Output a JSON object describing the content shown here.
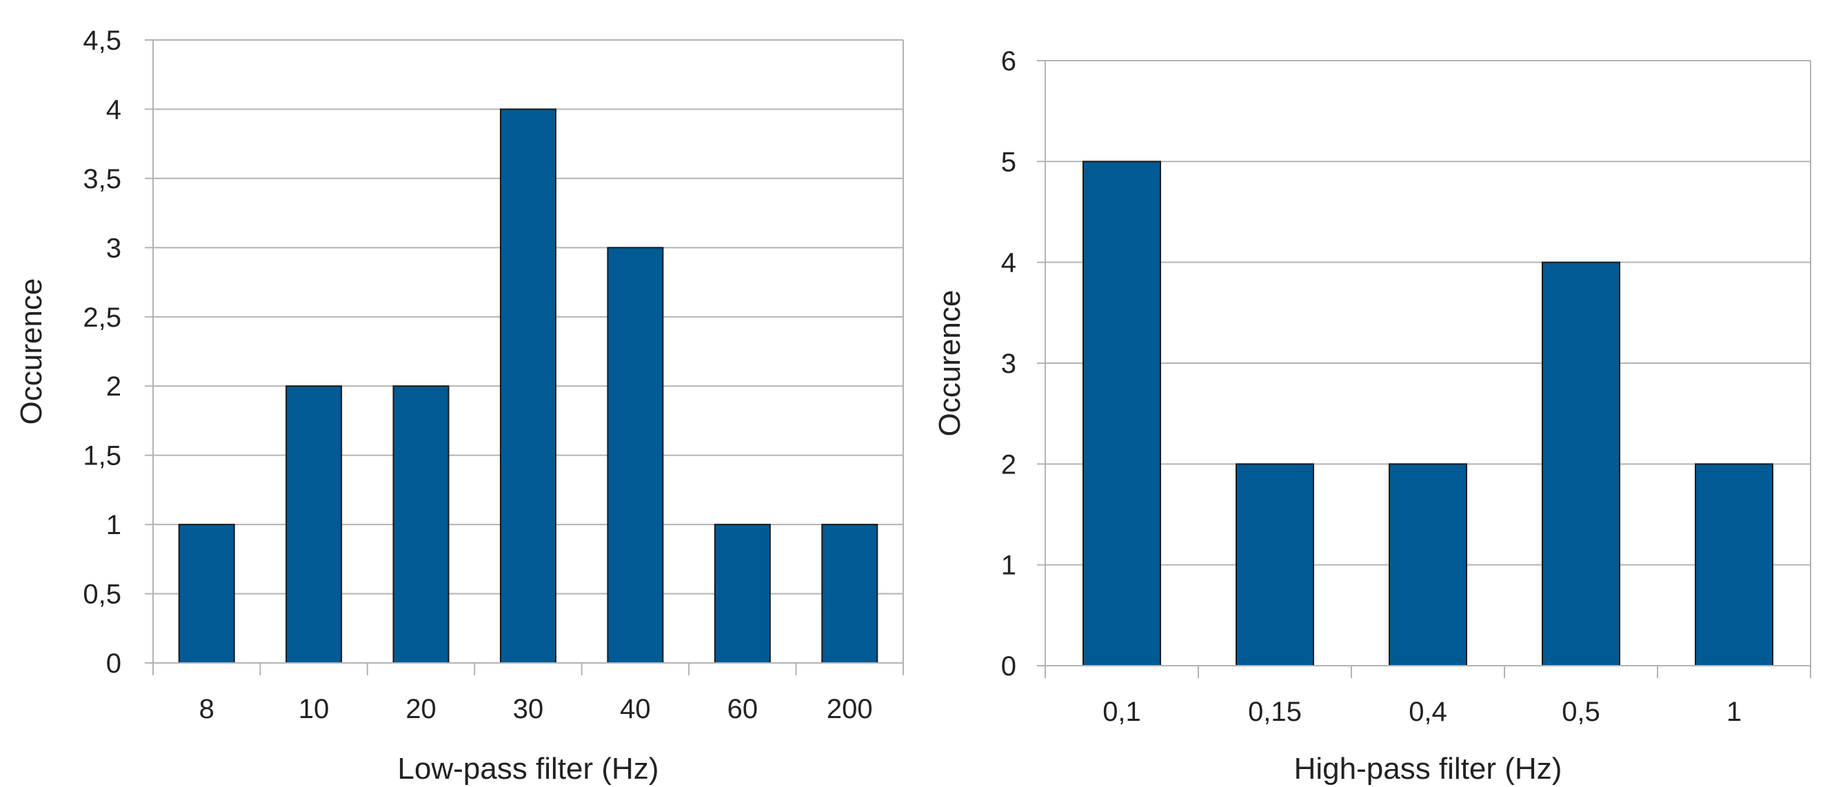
{
  "chart_data": [
    {
      "type": "bar",
      "title": "",
      "xlabel": "Low-pass filter (Hz)",
      "ylabel": "Occurence",
      "categories": [
        "8",
        "10",
        "20",
        "30",
        "40",
        "60",
        "200"
      ],
      "values": [
        1,
        2,
        2,
        4,
        3,
        1,
        1
      ],
      "ylim": [
        0,
        4.5
      ],
      "yticks": [
        0,
        0.5,
        1,
        1.5,
        2,
        2.5,
        3,
        3.5,
        4,
        4.5
      ],
      "ytick_labels": [
        "0",
        "0,5",
        "1",
        "1,5",
        "2",
        "2,5",
        "3",
        "3,5",
        "4",
        "4,5"
      ],
      "grid": true,
      "legend": "none",
      "bar_color": "#005a94"
    },
    {
      "type": "bar",
      "title": "",
      "xlabel": "High-pass filter (Hz)",
      "ylabel": "Occurence",
      "categories": [
        "0,1",
        "0,15",
        "0,4",
        "0,5",
        "1"
      ],
      "values": [
        5,
        2,
        2,
        4,
        2
      ],
      "ylim": [
        0,
        6
      ],
      "yticks": [
        0,
        1,
        2,
        3,
        4,
        5,
        6
      ],
      "ytick_labels": [
        "0",
        "1",
        "2",
        "3",
        "4",
        "5",
        "6"
      ],
      "grid": true,
      "legend": "none",
      "bar_color": "#005a94"
    }
  ],
  "colors": {
    "bar": "#005a94",
    "grid": "#b3b3b3",
    "axis": "#b3b3b3",
    "text": "#222222"
  }
}
